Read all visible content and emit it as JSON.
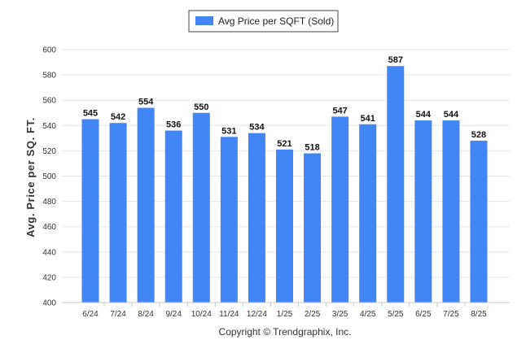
{
  "legend": {
    "label": "Avg Price per SQFT (Sold)"
  },
  "footer": {
    "copyright": "Copyright © Trendgraphix, Inc."
  },
  "chart_data": {
    "type": "bar",
    "title": "",
    "xlabel": "",
    "ylabel": "Avg. Price per SQ. FT.",
    "categories": [
      "6/24",
      "7/24",
      "8/24",
      "9/24",
      "10/24",
      "11/24",
      "12/24",
      "1/25",
      "2/25",
      "3/25",
      "4/25",
      "5/25",
      "6/25",
      "7/25",
      "8/25"
    ],
    "series": [
      {
        "name": "Avg Price per SQFT (Sold)",
        "values": [
          545,
          542,
          554,
          536,
          550,
          531,
          534,
          521,
          518,
          547,
          541,
          587,
          544,
          544,
          528
        ],
        "color": "#4285f4"
      }
    ],
    "ylim": [
      400,
      600
    ],
    "yticks": [
      400,
      420,
      440,
      460,
      480,
      500,
      520,
      540,
      560,
      580,
      600
    ],
    "grid": true,
    "legend_position": "top-center",
    "data_labels": true
  }
}
